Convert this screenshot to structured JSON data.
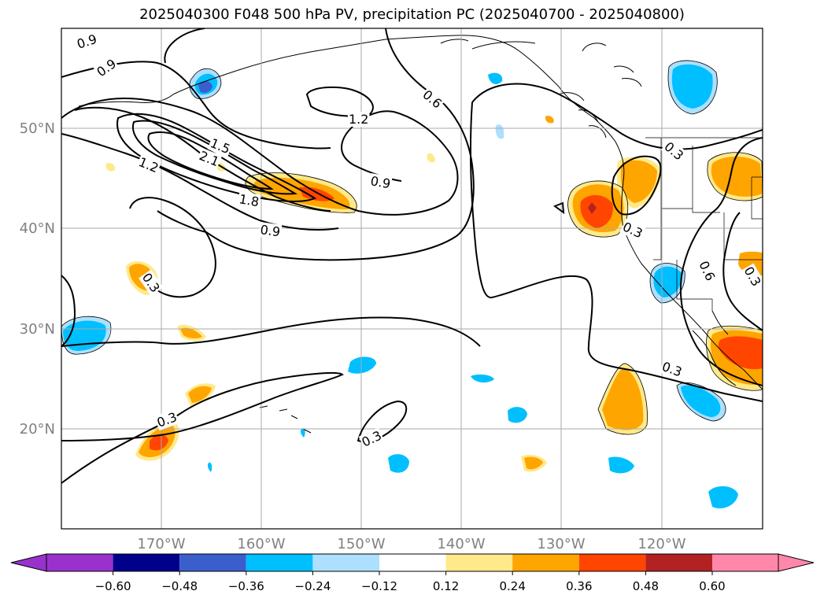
{
  "title": "2025040300 F048 500 hPa PV, precipitation PC (2025040700 - 2025040800)",
  "map": {
    "longitude_labels": [
      "170°W",
      "160°W",
      "150°W",
      "140°W",
      "130°W",
      "120°W"
    ],
    "latitude_labels": [
      "50°N",
      "40°N",
      "30°N",
      "20°N"
    ],
    "pv_contour_labels": [
      {
        "text": "0.9"
      },
      {
        "text": "0.9"
      },
      {
        "text": "0.6"
      },
      {
        "text": "1.2"
      },
      {
        "text": "1.5"
      },
      {
        "text": "2.1"
      },
      {
        "text": "1.2"
      },
      {
        "text": "0.9"
      },
      {
        "text": "1.8"
      },
      {
        "text": "0.9"
      },
      {
        "text": "0.3"
      },
      {
        "text": "0.3"
      },
      {
        "text": "0.3"
      },
      {
        "text": "0.6"
      },
      {
        "text": "0.3"
      },
      {
        "text": "0.3"
      },
      {
        "text": "0.3"
      },
      {
        "text": "0.3"
      }
    ]
  },
  "colorbar": {
    "tick_labels": [
      "−0.60",
      "−0.48",
      "−0.36",
      "−0.24",
      "−0.12",
      "0.12",
      "0.24",
      "0.36",
      "0.48",
      "0.60"
    ],
    "colors": [
      "#9932CC",
      "#00008B",
      "#3A5FCD",
      "#00BFFF",
      "#ADDFFF",
      "#FFFFFF",
      "#FFE989",
      "#FFA500",
      "#FF4500",
      "#B22222",
      "#FF88AA"
    ]
  }
}
